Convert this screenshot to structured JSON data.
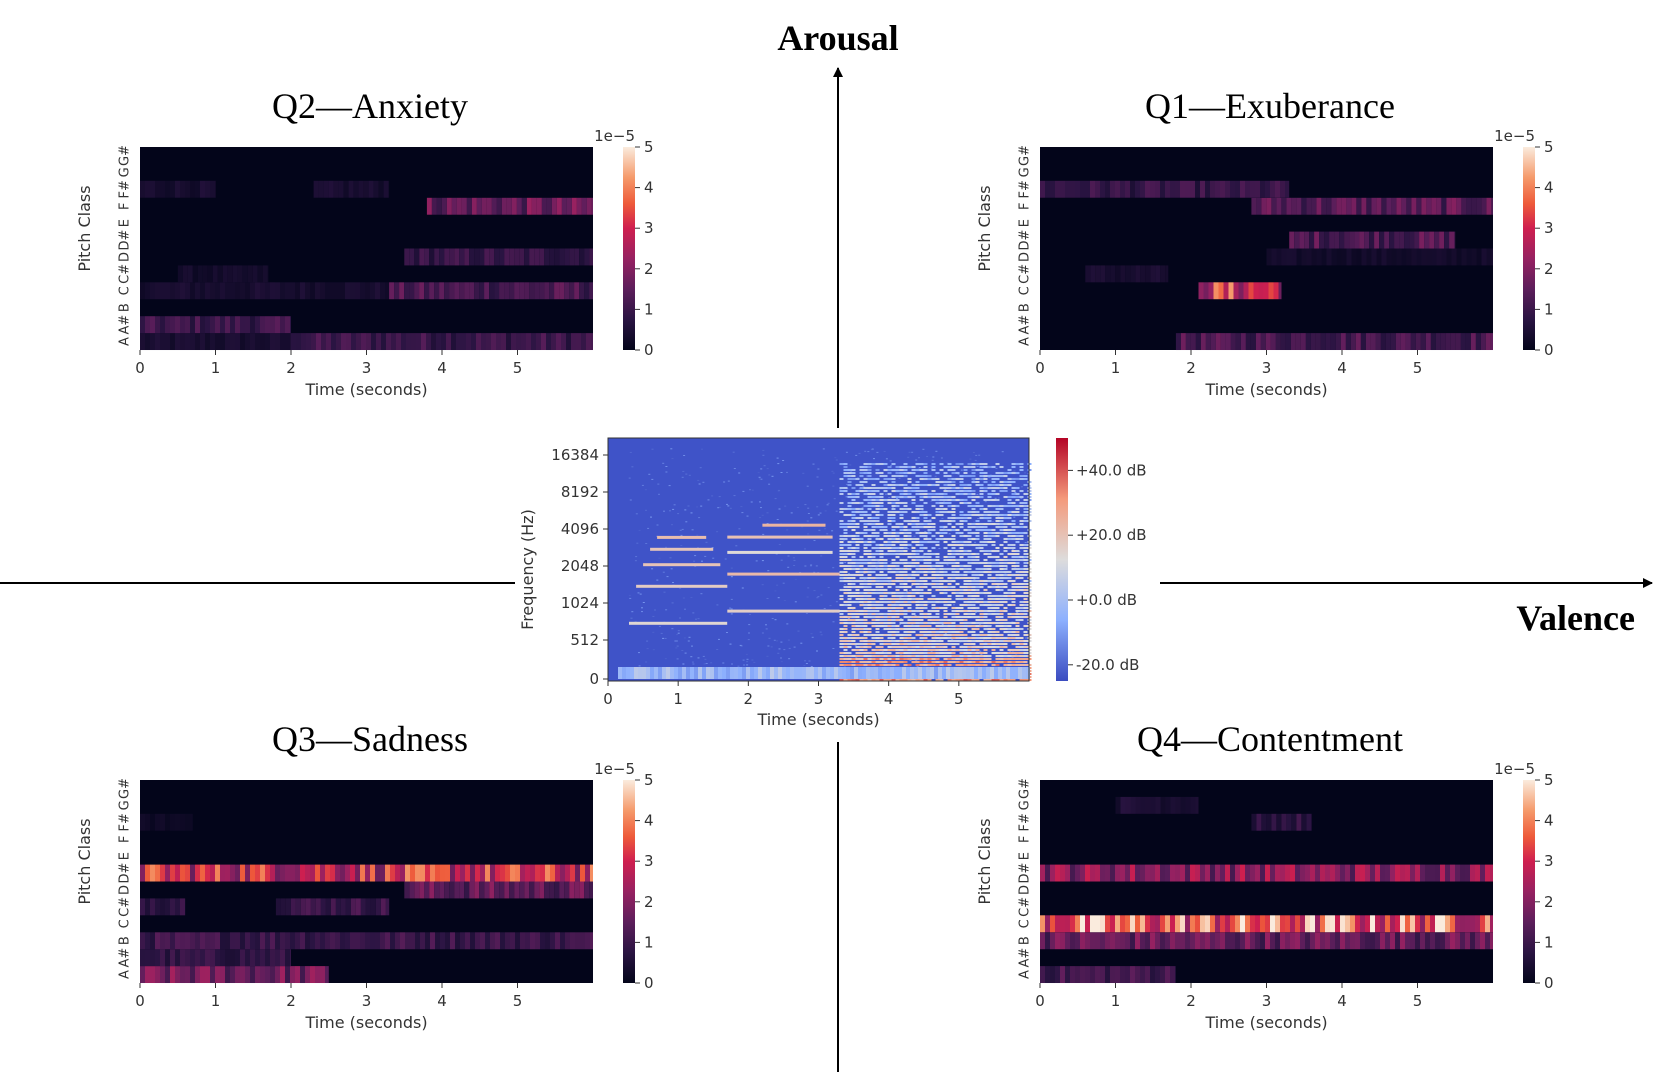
{
  "axes": {
    "arousal_label": "Arousal",
    "valence_label": "Valence"
  },
  "chart_data": [
    {
      "id": "q2",
      "type": "heatmap",
      "title": "Q2—Anxiety",
      "xlabel": "Time (seconds)",
      "ylabel": "Pitch Class",
      "xticks": [
        "0",
        "1",
        "2",
        "3",
        "4",
        "5"
      ],
      "xlim": [
        0,
        6
      ],
      "pitch_classes": [
        "A",
        "A#",
        "B",
        "C",
        "C#",
        "D",
        "D#",
        "E",
        "F",
        "F#",
        "G",
        "G#"
      ],
      "colorbar": {
        "scale_label": "1e−5",
        "min": 0,
        "max": 5,
        "ticks": [
          "0",
          "1",
          "2",
          "3",
          "4",
          "5"
        ],
        "colormap": "rocket"
      },
      "rows": [
        {
          "pitch": "A",
          "segments": [
            [
              0.0,
              2.0,
              0.4
            ],
            [
              2.0,
              6.0,
              1.0
            ]
          ]
        },
        {
          "pitch": "A#",
          "segments": [
            [
              0.0,
              2.0,
              1.0
            ]
          ]
        },
        {
          "pitch": "B",
          "segments": []
        },
        {
          "pitch": "C",
          "segments": [
            [
              0.0,
              3.3,
              0.4
            ],
            [
              3.3,
              6.0,
              1.2
            ]
          ]
        },
        {
          "pitch": "C#",
          "segments": [
            [
              0.5,
              1.7,
              0.3
            ]
          ]
        },
        {
          "pitch": "D",
          "segments": [
            [
              3.5,
              6.0,
              0.9
            ]
          ]
        },
        {
          "pitch": "D#",
          "segments": []
        },
        {
          "pitch": "E",
          "segments": []
        },
        {
          "pitch": "F",
          "segments": [
            [
              3.8,
              6.0,
              1.6
            ]
          ]
        },
        {
          "pitch": "F#",
          "segments": [
            [
              0.0,
              1.0,
              0.4
            ],
            [
              2.3,
              3.3,
              0.4
            ]
          ]
        },
        {
          "pitch": "G",
          "segments": []
        },
        {
          "pitch": "G#",
          "segments": []
        }
      ]
    },
    {
      "id": "q1",
      "type": "heatmap",
      "title": "Q1—Exuberance",
      "xlabel": "Time (seconds)",
      "ylabel": "Pitch Class",
      "xticks": [
        "0",
        "1",
        "2",
        "3",
        "4",
        "5"
      ],
      "xlim": [
        0,
        6
      ],
      "pitch_classes": [
        "A",
        "A#",
        "B",
        "C",
        "C#",
        "D",
        "D#",
        "E",
        "F",
        "F#",
        "G",
        "G#"
      ],
      "colorbar": {
        "scale_label": "1e−5",
        "min": 0,
        "max": 5,
        "ticks": [
          "0",
          "1",
          "2",
          "3",
          "4",
          "5"
        ],
        "colormap": "rocket"
      },
      "rows": [
        {
          "pitch": "A",
          "segments": [
            [
              1.8,
              6.0,
              1.2
            ]
          ]
        },
        {
          "pitch": "A#",
          "segments": []
        },
        {
          "pitch": "B",
          "segments": []
        },
        {
          "pitch": "C",
          "segments": [
            [
              2.1,
              3.2,
              3.0
            ]
          ]
        },
        {
          "pitch": "C#",
          "segments": [
            [
              0.6,
              1.7,
              0.4
            ]
          ]
        },
        {
          "pitch": "D",
          "segments": [
            [
              3.0,
              6.0,
              0.3
            ]
          ]
        },
        {
          "pitch": "D#",
          "segments": [
            [
              3.3,
              5.5,
              1.3
            ]
          ]
        },
        {
          "pitch": "E",
          "segments": []
        },
        {
          "pitch": "F",
          "segments": [
            [
              2.8,
              6.0,
              1.4
            ]
          ]
        },
        {
          "pitch": "F#",
          "segments": [
            [
              0.0,
              3.3,
              0.9
            ]
          ]
        },
        {
          "pitch": "G",
          "segments": []
        },
        {
          "pitch": "G#",
          "segments": []
        }
      ]
    },
    {
      "id": "q3",
      "type": "heatmap",
      "title": "Q3—Sadness",
      "xlabel": "Time (seconds)",
      "ylabel": "Pitch Class",
      "xticks": [
        "0",
        "1",
        "2",
        "3",
        "4",
        "5"
      ],
      "xlim": [
        0,
        6
      ],
      "pitch_classes": [
        "A",
        "A#",
        "B",
        "C",
        "C#",
        "D",
        "D#",
        "E",
        "F",
        "F#",
        "G",
        "G#"
      ],
      "colorbar": {
        "scale_label": "1e−5",
        "min": 0,
        "max": 5,
        "ticks": [
          "0",
          "1",
          "2",
          "3",
          "4",
          "5"
        ],
        "colormap": "rocket"
      },
      "rows": [
        {
          "pitch": "A",
          "segments": [
            [
              0.0,
              2.5,
              1.7
            ]
          ]
        },
        {
          "pitch": "A#",
          "segments": [
            [
              0.0,
              2.0,
              0.8
            ]
          ]
        },
        {
          "pitch": "B",
          "segments": [
            [
              0.0,
              6.0,
              1.0
            ]
          ]
        },
        {
          "pitch": "C",
          "segments": []
        },
        {
          "pitch": "C#",
          "segments": [
            [
              0.0,
              0.6,
              0.9
            ],
            [
              1.8,
              3.3,
              1.0
            ]
          ]
        },
        {
          "pitch": "D",
          "segments": [
            [
              3.5,
              6.0,
              1.5
            ]
          ]
        },
        {
          "pitch": "D#",
          "segments": [
            [
              0.0,
              6.0,
              2.9
            ]
          ]
        },
        {
          "pitch": "E",
          "segments": []
        },
        {
          "pitch": "F",
          "segments": []
        },
        {
          "pitch": "F#",
          "segments": [
            [
              0.0,
              0.7,
              0.2
            ]
          ]
        },
        {
          "pitch": "G",
          "segments": []
        },
        {
          "pitch": "G#",
          "segments": []
        }
      ]
    },
    {
      "id": "q4",
      "type": "heatmap",
      "title": "Q4—Contentment",
      "xlabel": "Time (seconds)",
      "ylabel": "Pitch Class",
      "xticks": [
        "0",
        "1",
        "2",
        "3",
        "4",
        "5"
      ],
      "xlim": [
        0,
        6
      ],
      "pitch_classes": [
        "A",
        "A#",
        "B",
        "C",
        "C#",
        "D",
        "D#",
        "E",
        "F",
        "F#",
        "G",
        "G#"
      ],
      "colorbar": {
        "scale_label": "1e−5",
        "min": 0,
        "max": 5,
        "ticks": [
          "0",
          "1",
          "2",
          "3",
          "4",
          "5"
        ],
        "colormap": "rocket"
      },
      "rows": [
        {
          "pitch": "A",
          "segments": [
            [
              0.0,
              1.8,
              1.1
            ]
          ]
        },
        {
          "pitch": "A#",
          "segments": []
        },
        {
          "pitch": "B",
          "segments": [
            [
              0.0,
              6.0,
              1.6
            ]
          ]
        },
        {
          "pitch": "C",
          "segments": [
            [
              0.0,
              6.0,
              3.6
            ]
          ]
        },
        {
          "pitch": "C#",
          "segments": []
        },
        {
          "pitch": "D",
          "segments": []
        },
        {
          "pitch": "D#",
          "segments": [
            [
              0.0,
              6.0,
              2.1
            ]
          ]
        },
        {
          "pitch": "E",
          "segments": []
        },
        {
          "pitch": "F",
          "segments": []
        },
        {
          "pitch": "F#",
          "segments": [
            [
              2.8,
              3.6,
              0.8
            ]
          ]
        },
        {
          "pitch": "G",
          "segments": [
            [
              1.0,
              2.1,
              0.5
            ]
          ]
        },
        {
          "pitch": "G#",
          "segments": []
        }
      ]
    },
    {
      "id": "spectrogram",
      "type": "heatmap",
      "title": "",
      "xlabel": "Time (seconds)",
      "ylabel": "Frequency (Hz)",
      "xticks": [
        "0",
        "1",
        "2",
        "3",
        "4",
        "5"
      ],
      "xlim": [
        0,
        6
      ],
      "yticks": [
        "0",
        "512",
        "1024",
        "2048",
        "4096",
        "8192",
        "16384"
      ],
      "colorbar": {
        "min_db": -25,
        "max_db": 50,
        "ticks": [
          "+40.0 dB",
          "+20.0 dB",
          "+0.0 dB",
          "-20.0 dB"
        ],
        "tick_values": [
          40,
          20,
          0,
          -20
        ],
        "colormap": "coolwarm"
      },
      "notes": [
        {
          "freq_hz": 700,
          "start": 0.3,
          "end": 1.7
        },
        {
          "freq_hz": 1400,
          "start": 0.4,
          "end": 1.7
        },
        {
          "freq_hz": 2100,
          "start": 0.5,
          "end": 1.6
        },
        {
          "freq_hz": 2800,
          "start": 0.6,
          "end": 1.5
        },
        {
          "freq_hz": 3500,
          "start": 0.7,
          "end": 1.4
        },
        {
          "freq_hz": 880,
          "start": 1.7,
          "end": 3.3
        },
        {
          "freq_hz": 1760,
          "start": 1.7,
          "end": 3.3
        },
        {
          "freq_hz": 2640,
          "start": 1.7,
          "end": 3.2
        },
        {
          "freq_hz": 3520,
          "start": 1.7,
          "end": 3.2
        },
        {
          "freq_hz": 4400,
          "start": 2.2,
          "end": 3.1
        }
      ],
      "dense_region": {
        "start": 3.3,
        "end": 6.0
      }
    }
  ]
}
